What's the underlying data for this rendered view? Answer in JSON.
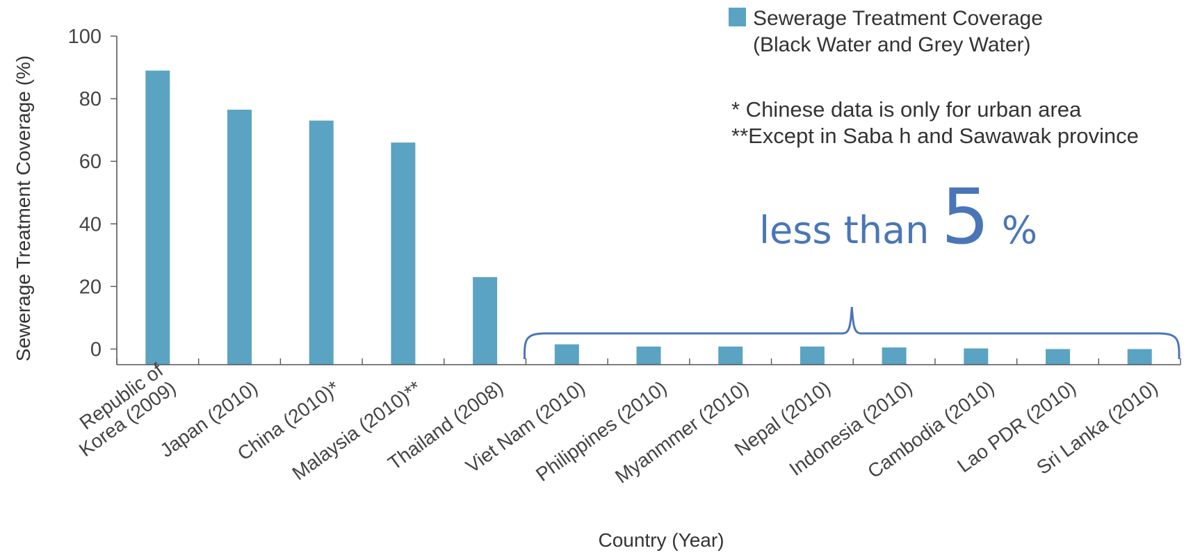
{
  "chart_data": {
    "type": "bar",
    "categories": [
      [
        "Republic of",
        "Korea (2009)"
      ],
      [
        "Japan (2010)"
      ],
      [
        "China (2010)*"
      ],
      [
        "Malaysia (2010)**"
      ],
      [
        "Thailand (2008)"
      ],
      [
        "Viet Nam (2010)"
      ],
      [
        "Philippines (2010)"
      ],
      [
        "Myanmmer (2010)"
      ],
      [
        "Nepal (2010)"
      ],
      [
        "Indonesia (2010)"
      ],
      [
        "Cambodia (2010)"
      ],
      [
        "Lao PDR (2010)"
      ],
      [
        "Sri Lanka (2010)"
      ]
    ],
    "values": [
      89,
      76.5,
      73,
      66,
      23,
      1.5,
      0.8,
      0.8,
      0.8,
      0.5,
      0.2,
      0,
      0
    ],
    "ylabel": "Sewerage Treatment Coverage (%)",
    "xlabel": "Country (Year)",
    "yticks": [
      100,
      80,
      60,
      40,
      20,
      0
    ],
    "ylim": [
      -5,
      100
    ],
    "bar_color": "#5ba3c2",
    "legend": {
      "position": "top-right",
      "lines": [
        "Sewerage Treatment Coverage",
        "(Black Water and Grey Water)"
      ]
    },
    "notes": [
      "* Chinese data is only for urban area",
      "**Except in Saba h and Sawawak province"
    ],
    "annotation": {
      "prefix": "less than ",
      "number": "5",
      "suffix": " %",
      "color": "#4a76b8",
      "brace_from_category": 5,
      "brace_to_category": 12
    }
  }
}
